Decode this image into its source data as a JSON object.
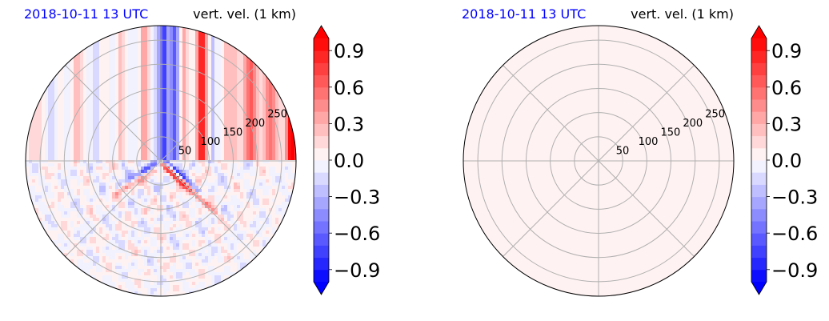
{
  "chart_data": [
    {
      "type": "heatmap",
      "projection": "polar",
      "title_left": "2018-10-11 13 UTC",
      "title_right": "vert. vel. (1 km)",
      "radial_ticks": [
        50,
        100,
        150,
        200,
        250
      ],
      "radial_max": 280,
      "angular_gridlines_deg": [
        0,
        45,
        90,
        135,
        180,
        225,
        270,
        315
      ],
      "field": "vertical velocity (strong north–south banded updrafts/downdrafts in the northern half, small-scale cellular noise in the southern half, diagonal convergence line through the center)",
      "grid": true
    },
    {
      "type": "heatmap",
      "projection": "polar",
      "title_left": "2018-10-11 13 UTC",
      "title_right": "vert. vel. (1 km)",
      "radial_ticks": [
        50,
        100,
        150,
        200,
        250
      ],
      "radial_max": 280,
      "angular_gridlines_deg": [
        0,
        45,
        90,
        135,
        180,
        225,
        270,
        315
      ],
      "field": "near-uniform small positive value",
      "uniform_value": 0.03,
      "grid": true
    }
  ],
  "colorbar": {
    "cmap": "bwr",
    "vmin": -1.0,
    "vmax": 1.0,
    "levels": 20,
    "extend": "both",
    "tick_values": [
      -0.9,
      -0.6,
      -0.3,
      0.0,
      0.3,
      0.6,
      0.9
    ],
    "tick_labels": [
      "−0.9",
      "−0.6",
      "−0.3",
      "0.0",
      "0.3",
      "0.6",
      "0.9"
    ]
  },
  "colors": {
    "title_date": "#0000ff",
    "grid": "#b0b0b0",
    "outline": "#000000"
  }
}
